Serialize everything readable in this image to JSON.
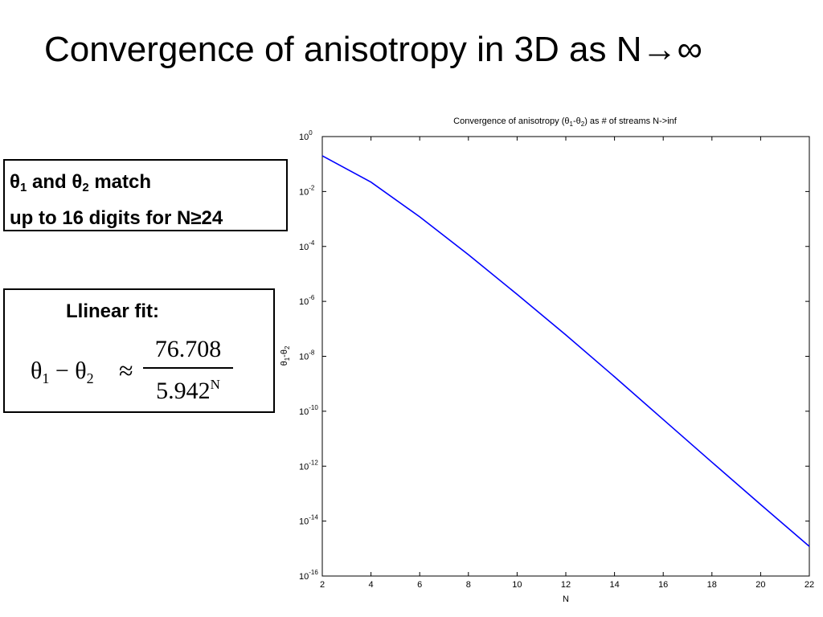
{
  "slide": {
    "title": "Convergence of anisotropy in 3D as N→∞"
  },
  "match_box": {
    "theta1": "θ",
    "sub1": "1",
    "and_text": " and ",
    "theta2": "θ",
    "sub2": "2",
    "match_text": " match",
    "line2": "up to 16 digits for N≥24"
  },
  "fit_box": {
    "label": "Llinear fit:",
    "lhs_theta1": "θ",
    "lhs_sub1": "1",
    "minus": " − ",
    "lhs_theta2": "θ",
    "lhs_sub2": "2",
    "approx": "≈",
    "numerator": "76.708",
    "denominator_base": "5.942",
    "denominator_exp": "N"
  },
  "chart_data": {
    "type": "line",
    "title_parts": [
      "Convergence of anisotropy (",
      "θ",
      "1",
      "-",
      "θ",
      "2",
      ") as # of streams N->inf"
    ],
    "xlabel": "N",
    "ylabel_parts": [
      "θ",
      "1",
      "-",
      "θ",
      "2"
    ],
    "x_ticks": [
      2,
      4,
      6,
      8,
      10,
      12,
      14,
      16,
      18,
      20,
      22
    ],
    "xlim": [
      2,
      22
    ],
    "y_scale": "log",
    "ylim": [
      1e-16,
      1
    ],
    "y_ticks": [
      {
        "base": "10",
        "exp": "0",
        "value": 1
      },
      {
        "base": "10",
        "exp": "-2",
        "value": 0.01
      },
      {
        "base": "10",
        "exp": "-4",
        "value": 0.0001
      },
      {
        "base": "10",
        "exp": "-6",
        "value": 1e-06
      },
      {
        "base": "10",
        "exp": "-8",
        "value": 1e-08
      },
      {
        "base": "10",
        "exp": "-10",
        "value": 1e-10
      },
      {
        "base": "10",
        "exp": "-12",
        "value": 1e-12
      },
      {
        "base": "10",
        "exp": "-14",
        "value": 1e-14
      },
      {
        "base": "10",
        "exp": "-16",
        "value": 1e-16
      }
    ],
    "grid": false,
    "line_color": "#0000ff",
    "series": [
      {
        "x": [
          2,
          4,
          6,
          8,
          10,
          12,
          14,
          16,
          18,
          20,
          22
        ],
        "y": [
          0.2,
          0.022,
          0.0012,
          5e-05,
          1.8e-06,
          6e-08,
          1.8e-09,
          5e-11,
          1.4e-12,
          4e-14,
          1.2e-15
        ]
      }
    ]
  }
}
